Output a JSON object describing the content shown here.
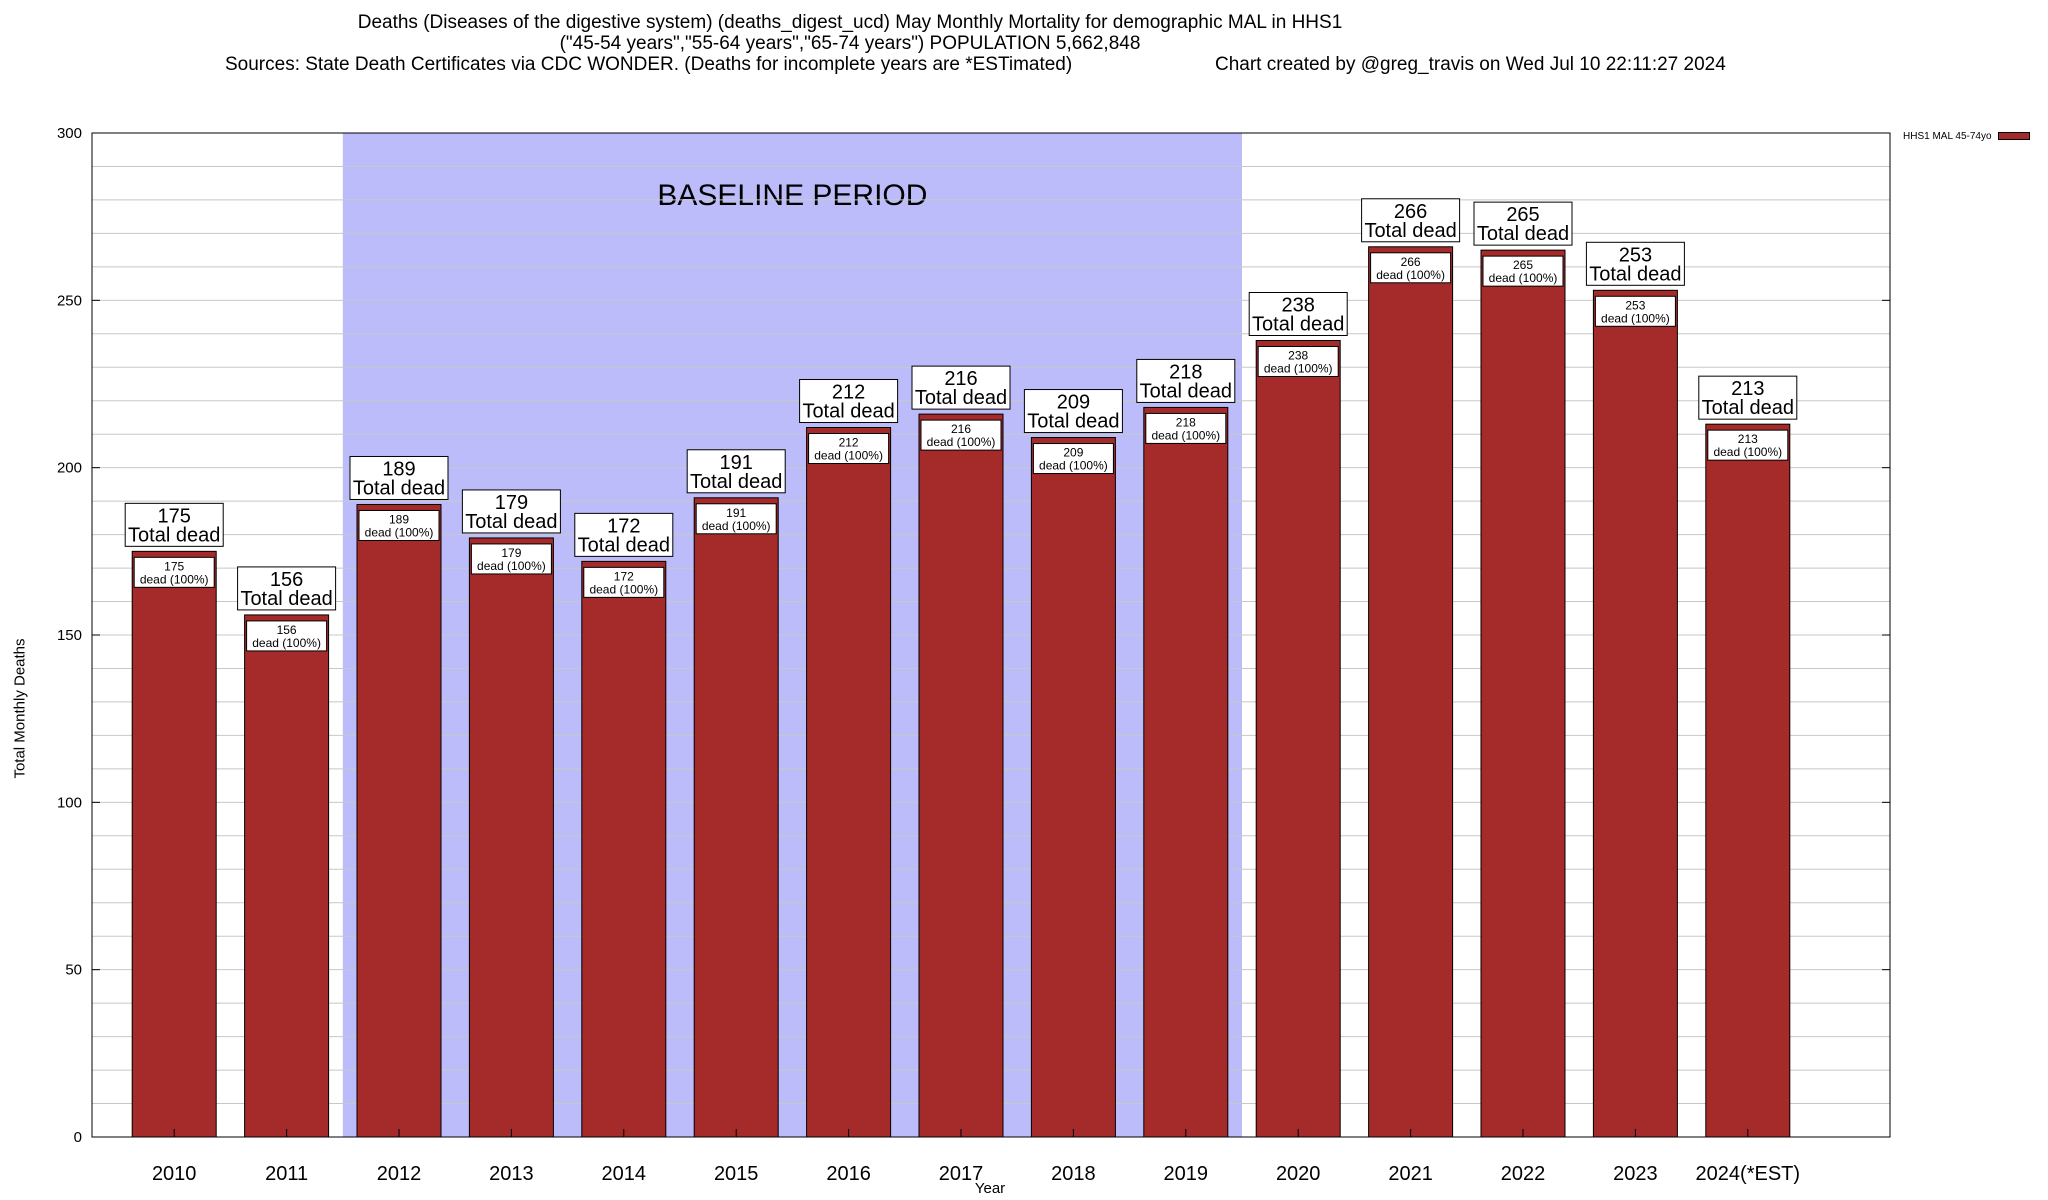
{
  "chart_data": {
    "type": "bar",
    "title_lines": [
      "Deaths (Diseases of the digestive system) (deaths_digest_ucd) May Monthly Mortality for demographic MAL in HHS1",
      "(\"45-54 years\",\"55-64 years\",\"65-74 years\") POPULATION 5,662,848"
    ],
    "source_text": "Sources: State Death Certificates via CDC WONDER. (Deaths for incomplete years are *ESTimated)",
    "credit_text": "Chart created by @greg_travis on Wed Jul 10 22:11:27 2024",
    "xlabel": "Year",
    "ylabel": "Total Monthly Deaths",
    "ylim": [
      0,
      300
    ],
    "yticks": [
      0,
      50,
      100,
      150,
      200,
      250,
      300
    ],
    "categories": [
      "2010",
      "2011",
      "2012",
      "2013",
      "2014",
      "2015",
      "2016",
      "2017",
      "2018",
      "2019",
      "2020",
      "2021",
      "2022",
      "2023",
      "2024(*EST)"
    ],
    "series": [
      {
        "name": "HHS1 MAL 45-74yo",
        "color": "#a52a2a",
        "values": [
          175,
          156,
          189,
          179,
          172,
          191,
          212,
          216,
          209,
          218,
          238,
          266,
          265,
          253,
          213
        ]
      }
    ],
    "top_label_text": "Total dead",
    "inner_label_text": "dead (100%)",
    "baseline_period": {
      "label": "BASELINE PERIOD",
      "from": "2012",
      "to": "2019",
      "color": "#bcbcfb"
    },
    "grid": true,
    "legend_position": "top-right"
  }
}
